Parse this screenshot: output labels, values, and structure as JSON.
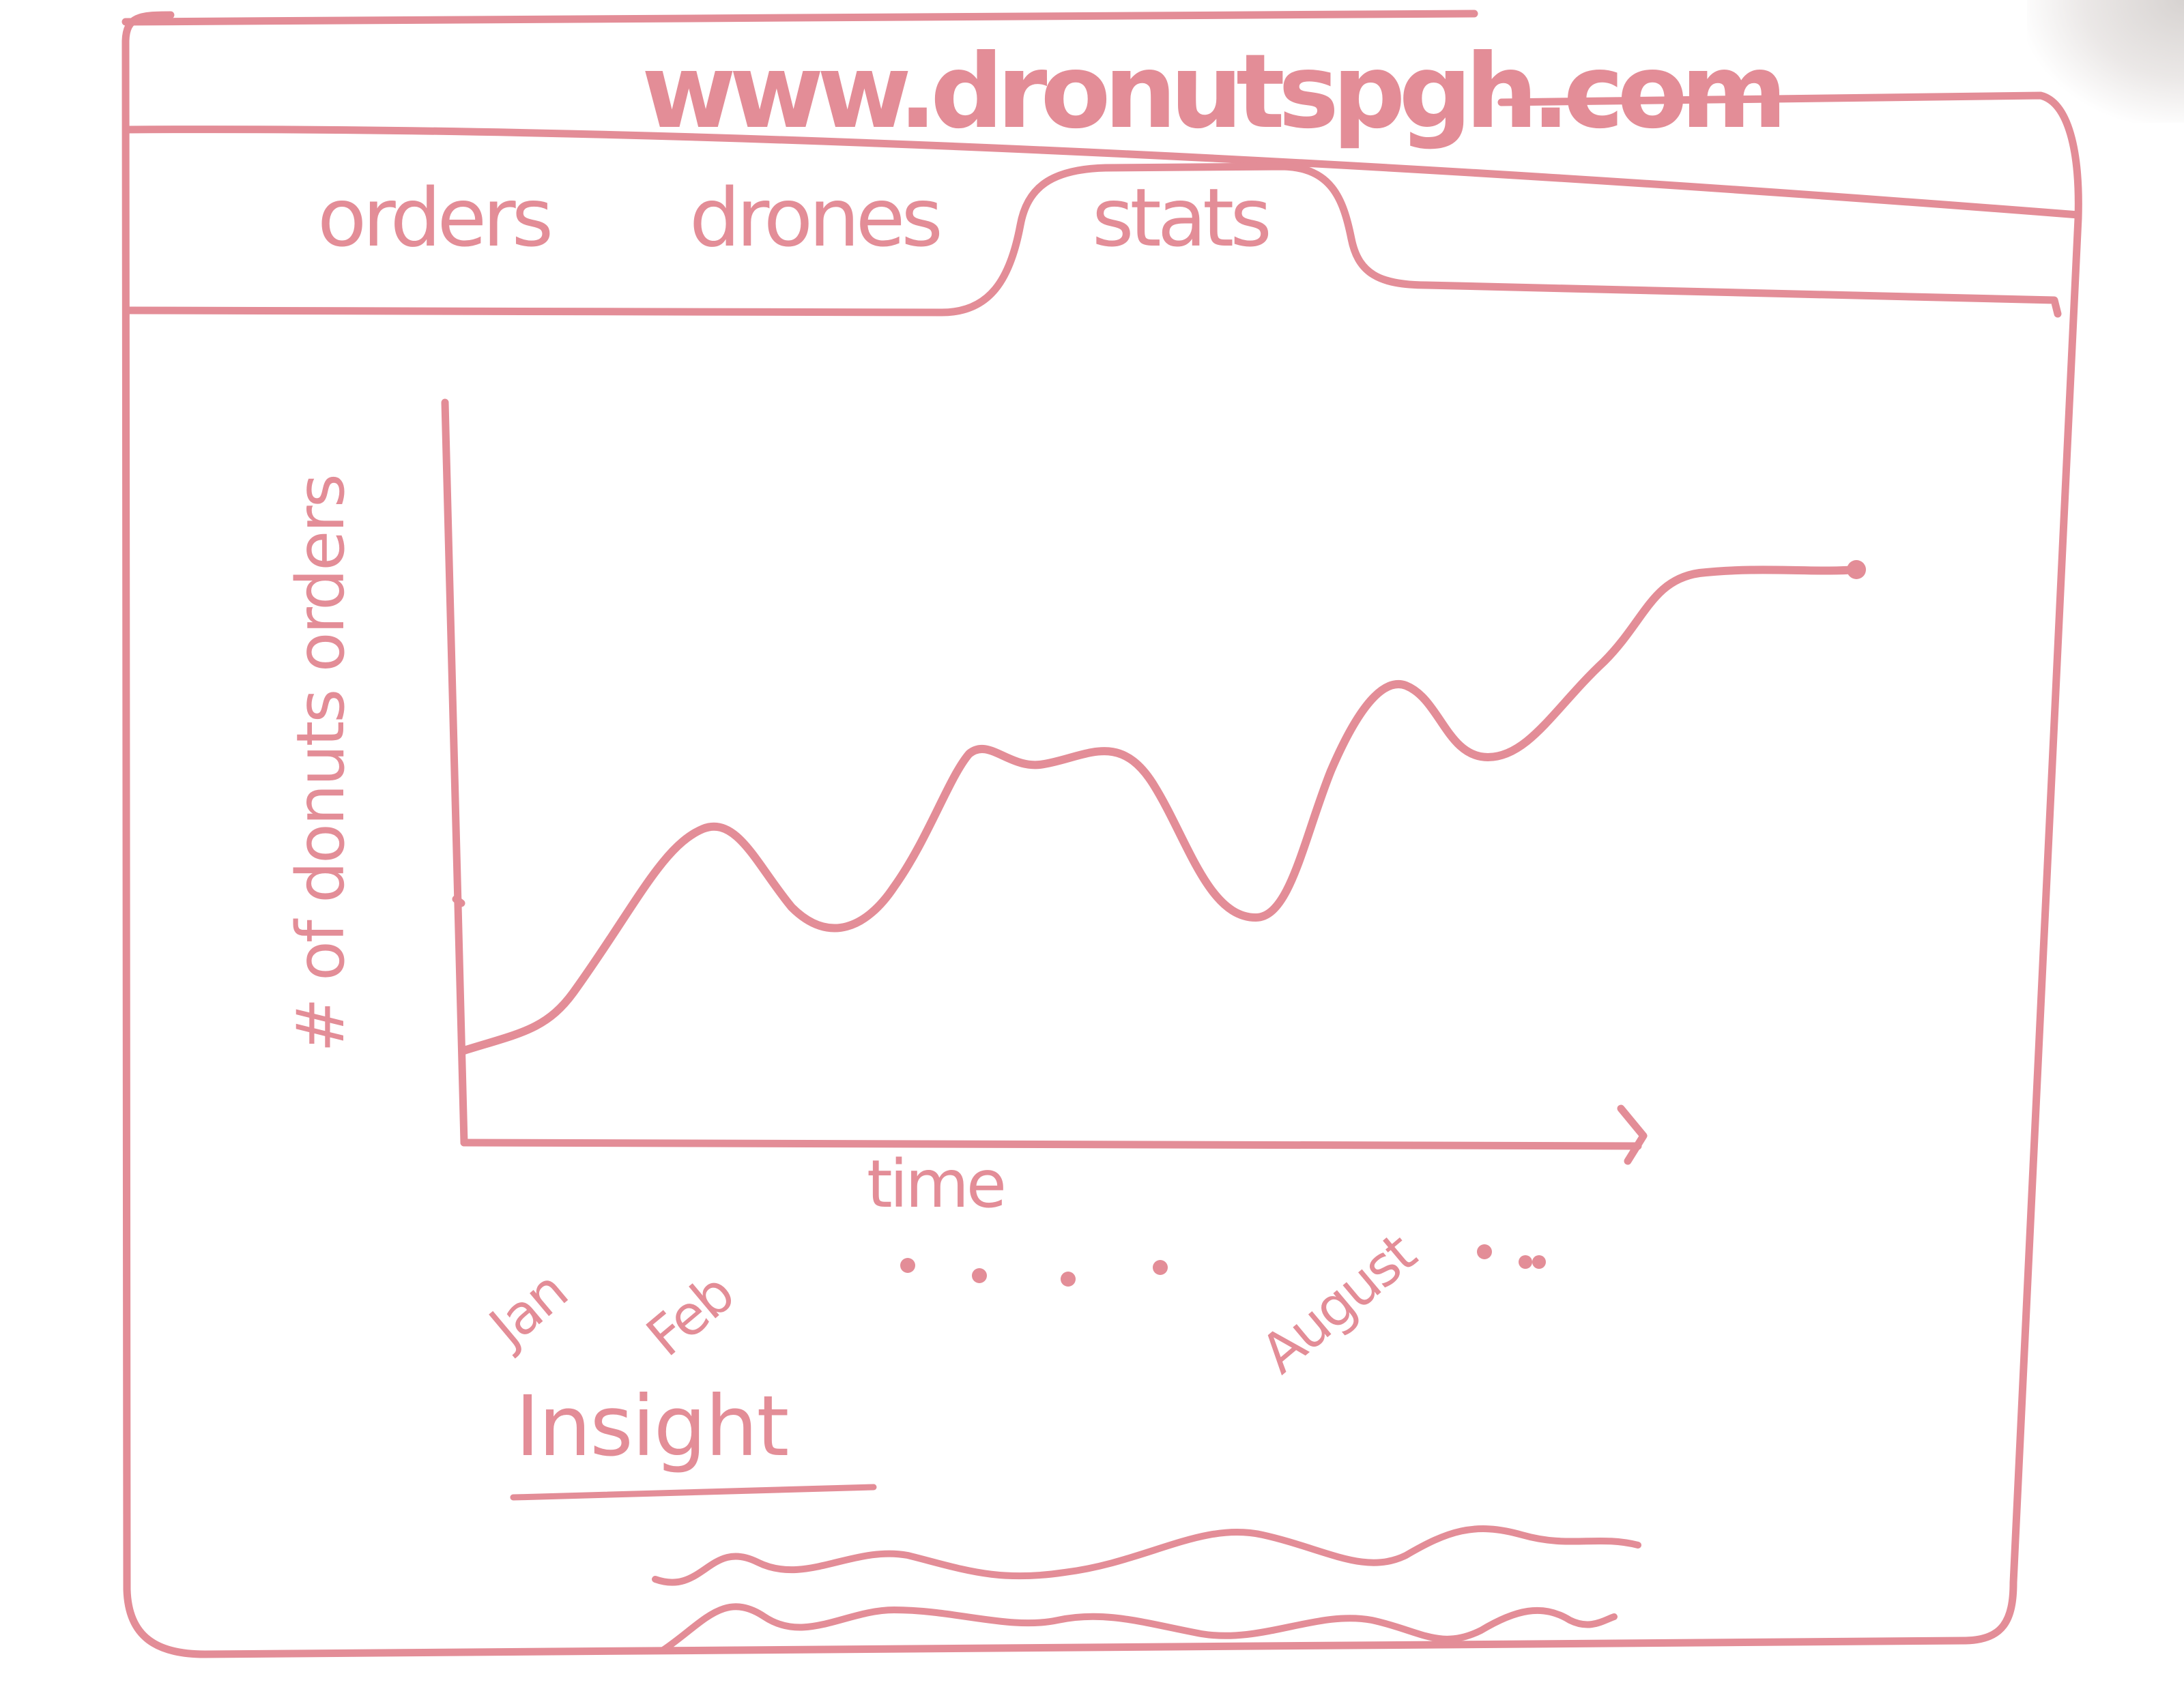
{
  "browser": {
    "url": "www.dronutspgh.com"
  },
  "tabs": [
    {
      "label": "orders",
      "active": false
    },
    {
      "label": "drones",
      "active": false
    },
    {
      "label": "stats",
      "active": true
    }
  ],
  "ink_color": "#e38d97",
  "chart_data": {
    "type": "line",
    "ylabel": "# of donuts orders",
    "xlabel": "time",
    "tick_labels": [
      "Jan",
      "Feb",
      "August"
    ],
    "ellipsis_after_feb": ". . . .",
    "ellipsis_after_august": ". . .",
    "grid": false,
    "legend": "none"
  },
  "insight": {
    "title": "Insight"
  }
}
